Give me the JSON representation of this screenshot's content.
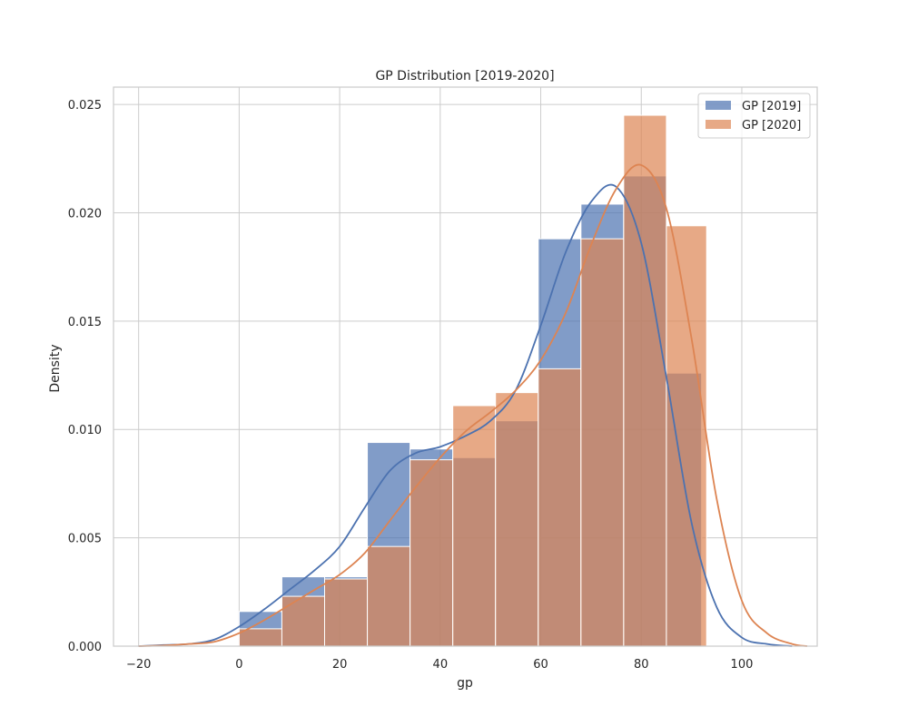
{
  "chart_data": {
    "type": "histogram",
    "title": "GP Distribution [2019-2020]",
    "xlabel": "gp",
    "ylabel": "Density",
    "xlim": [
      -25,
      115
    ],
    "ylim": [
      0,
      0.0258
    ],
    "xticks": [
      -20,
      0,
      20,
      40,
      60,
      80,
      100
    ],
    "xtick_labels": [
      "−20",
      "0",
      "20",
      "40",
      "60",
      "80",
      "100"
    ],
    "yticks": [
      0,
      0.005,
      0.01,
      0.015,
      0.02,
      0.025
    ],
    "ytick_labels": [
      "0.000",
      "0.005",
      "0.010",
      "0.015",
      "0.020",
      "0.025"
    ],
    "grid": true,
    "legend_position": "top-right",
    "series": [
      {
        "name": "GP [2019]",
        "color": "#4c72b0",
        "bin_edges": [
          0,
          8.5,
          17,
          25.5,
          34,
          42.5,
          51,
          59.5,
          68,
          76.5,
          85,
          92
        ],
        "density": [
          0.0016,
          0.0032,
          0.0032,
          0.0094,
          0.0091,
          0.0087,
          0.0104,
          0.0188,
          0.0204,
          0.0217,
          0.0126
        ],
        "kde": [
          [
            -20,
            0.0
          ],
          [
            -15,
            5e-05
          ],
          [
            -10,
            0.0001
          ],
          [
            -5,
            0.0003
          ],
          [
            0,
            0.0009
          ],
          [
            5,
            0.0017
          ],
          [
            10,
            0.0026
          ],
          [
            15,
            0.0035
          ],
          [
            20,
            0.0046
          ],
          [
            25,
            0.0064
          ],
          [
            30,
            0.0081
          ],
          [
            35,
            0.0089
          ],
          [
            40,
            0.0092
          ],
          [
            45,
            0.0097
          ],
          [
            50,
            0.0104
          ],
          [
            55,
            0.0118
          ],
          [
            60,
            0.0148
          ],
          [
            65,
            0.0182
          ],
          [
            70,
            0.0205
          ],
          [
            75,
            0.0212
          ],
          [
            80,
            0.0186
          ],
          [
            85,
            0.0124
          ],
          [
            90,
            0.0057
          ],
          [
            95,
            0.0018
          ],
          [
            100,
            0.0004
          ],
          [
            105,
            0.0001
          ],
          [
            110,
            0.0
          ]
        ]
      },
      {
        "name": "GP [2020]",
        "color": "#dd8452",
        "bin_edges": [
          0,
          8.5,
          17,
          25.5,
          34,
          42.5,
          51,
          59.5,
          68,
          76.5,
          85,
          93
        ],
        "density": [
          0.0008,
          0.0023,
          0.0031,
          0.0046,
          0.0086,
          0.0111,
          0.0117,
          0.0128,
          0.0188,
          0.0245,
          0.0194
        ],
        "kde": [
          [
            -20,
            0.0
          ],
          [
            -15,
            3e-05
          ],
          [
            -10,
            0.0001
          ],
          [
            -5,
            0.0002
          ],
          [
            0,
            0.0006
          ],
          [
            5,
            0.0012
          ],
          [
            10,
            0.0019
          ],
          [
            15,
            0.0026
          ],
          [
            20,
            0.0033
          ],
          [
            25,
            0.0043
          ],
          [
            30,
            0.0058
          ],
          [
            35,
            0.0073
          ],
          [
            40,
            0.0087
          ],
          [
            45,
            0.0099
          ],
          [
            50,
            0.0108
          ],
          [
            55,
            0.0118
          ],
          [
            60,
            0.0132
          ],
          [
            65,
            0.0154
          ],
          [
            70,
            0.0185
          ],
          [
            75,
            0.0211
          ],
          [
            80,
            0.0222
          ],
          [
            85,
            0.0202
          ],
          [
            90,
            0.0142
          ],
          [
            95,
            0.0068
          ],
          [
            100,
            0.0021
          ],
          [
            105,
            0.0006
          ],
          [
            110,
            0.0001
          ],
          [
            113,
            0.0
          ]
        ]
      }
    ]
  }
}
